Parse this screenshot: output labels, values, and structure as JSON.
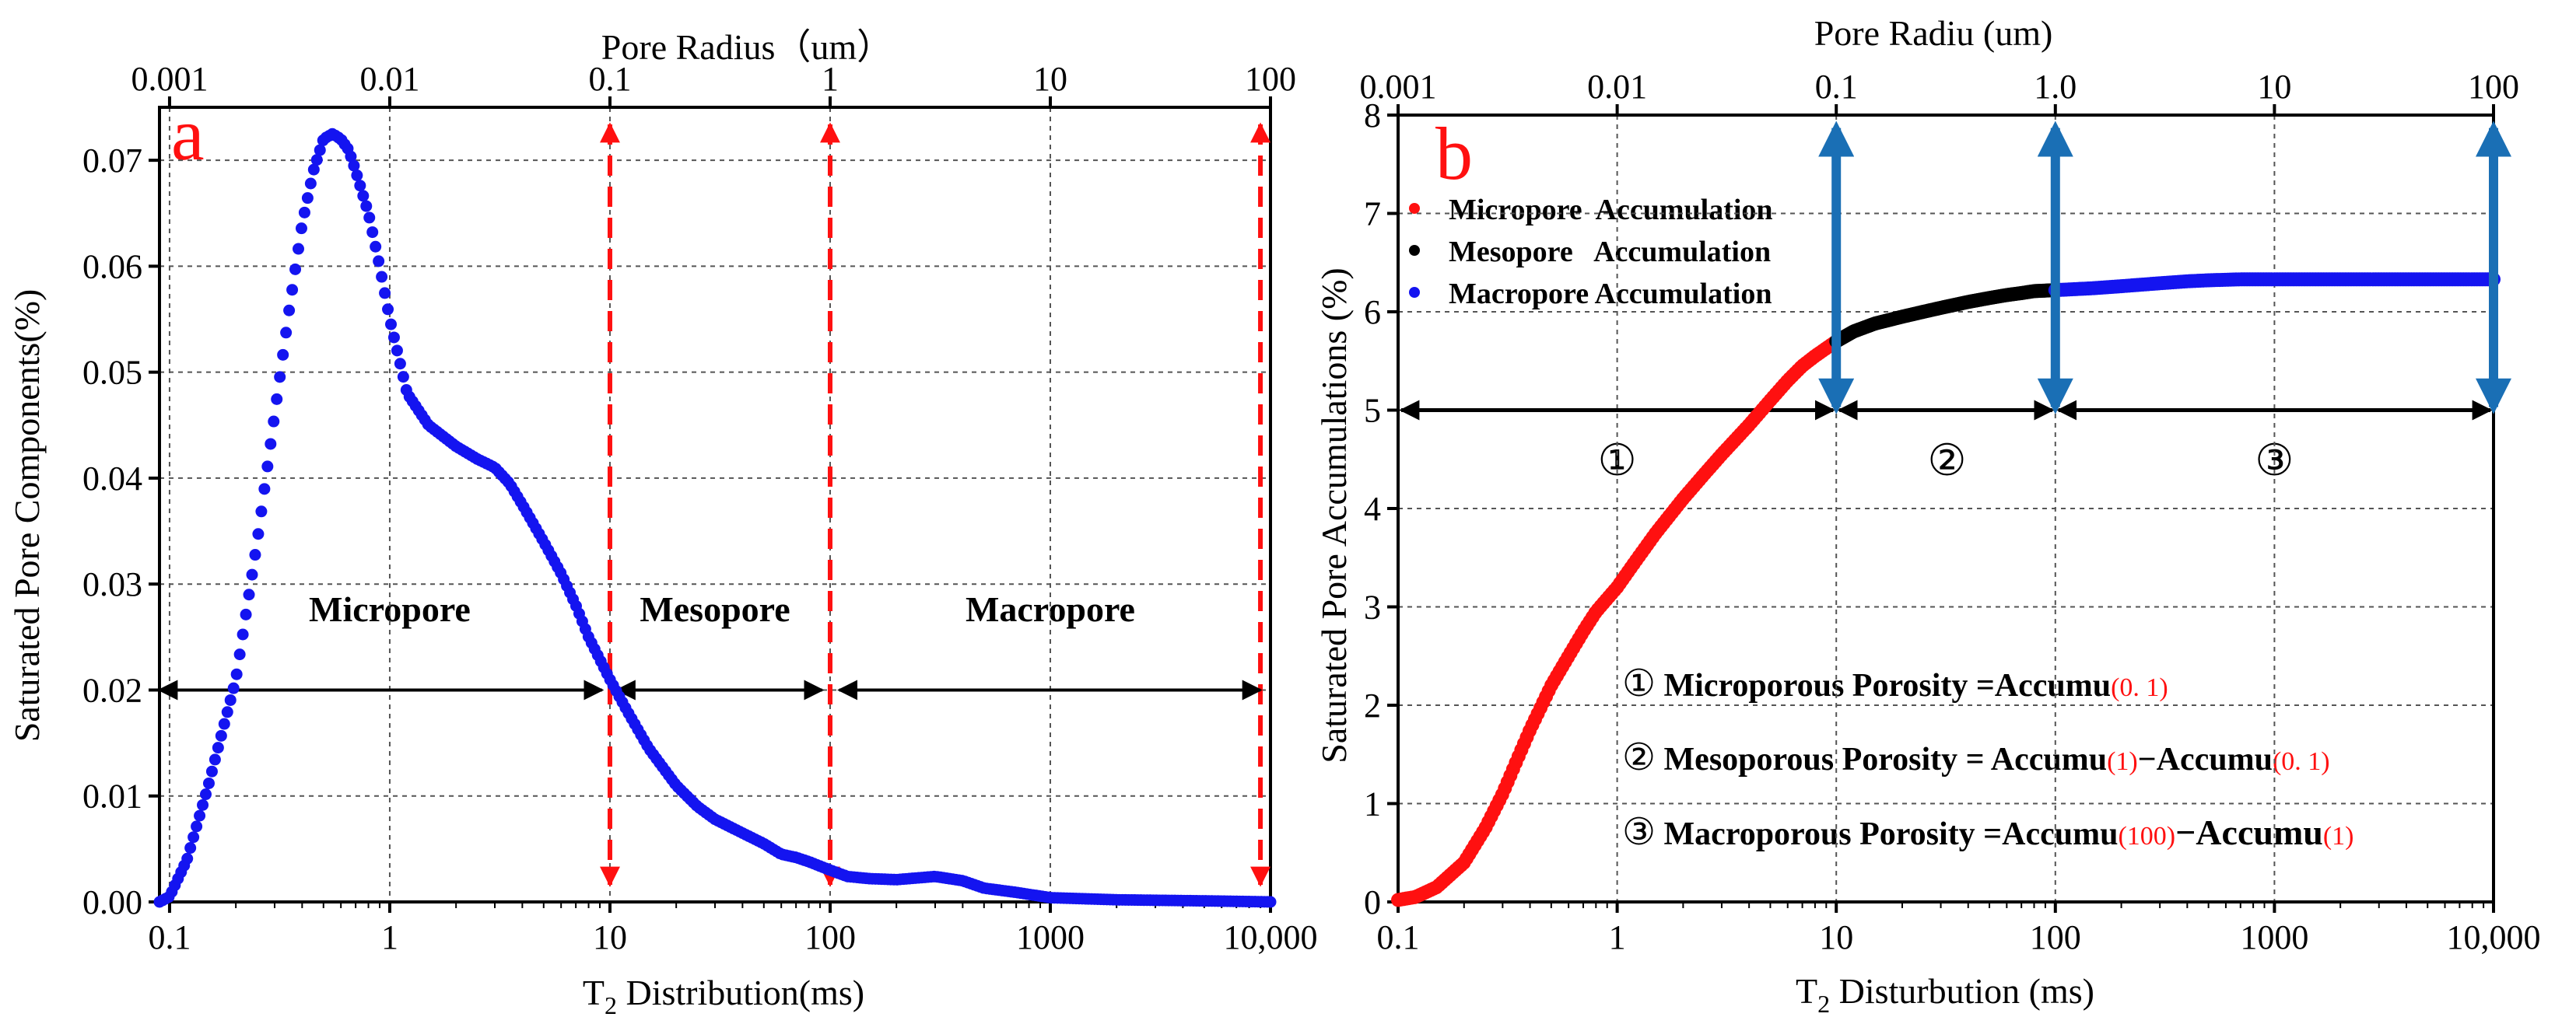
{
  "chart_data": [
    {
      "id": "a",
      "type": "scatter",
      "panel_label": "a",
      "x_scale": "log",
      "xlim": [
        0.09,
        10000
      ],
      "ylim": [
        0,
        0.075
      ],
      "xlabel_main": "T",
      "xlabel_sub": "2",
      "xlabel_rest": " Distribution(ms)",
      "ylabel": "Saturated Pore Components(%)",
      "top_axis_title": "Pore  Radius（um）",
      "x_ticks": [
        {
          "v": 0.1,
          "label": "0.1"
        },
        {
          "v": 1,
          "label": "1"
        },
        {
          "v": 10,
          "label": "10"
        },
        {
          "v": 100,
          "label": "100"
        },
        {
          "v": 1000,
          "label": "1000"
        },
        {
          "v": 10000,
          "label": "10,000"
        }
      ],
      "top_ticks": [
        {
          "v": 0.1,
          "label": "0.001"
        },
        {
          "v": 1,
          "label": "0.01"
        },
        {
          "v": 10,
          "label": "0.1"
        },
        {
          "v": 100,
          "label": "1"
        },
        {
          "v": 1000,
          "label": "10"
        },
        {
          "v": 10000,
          "label": "100"
        }
      ],
      "y_ticks": [
        {
          "v": 0,
          "label": "0.00"
        },
        {
          "v": 0.01,
          "label": "0.01"
        },
        {
          "v": 0.02,
          "label": "0.02"
        },
        {
          "v": 0.03,
          "label": "0.03"
        },
        {
          "v": 0.04,
          "label": "0.04"
        },
        {
          "v": 0.05,
          "label": "0.05"
        },
        {
          "v": 0.06,
          "label": "0.06"
        },
        {
          "v": 0.07,
          "label": "0.07"
        }
      ],
      "series": [
        {
          "name": "Saturated pore components",
          "color": "#1414f0",
          "x": [
            0.09,
            0.1,
            0.12,
            0.15,
            0.2,
            0.25,
            0.3,
            0.35,
            0.4,
            0.45,
            0.5,
            0.55,
            0.6,
            0.65,
            0.7,
            0.8,
            0.9,
            1.0,
            1.2,
            1.5,
            2,
            2.5,
            3,
            3.5,
            4,
            5,
            6,
            7,
            8,
            10,
            12,
            15,
            20,
            25,
            30,
            40,
            50,
            60,
            70,
            80,
            100,
            120,
            150,
            200,
            300,
            400,
            500,
            700,
            1000,
            2000,
            5000,
            10000
          ],
          "y": [
            0.0,
            0.0005,
            0.004,
            0.011,
            0.021,
            0.034,
            0.046,
            0.056,
            0.064,
            0.069,
            0.072,
            0.0725,
            0.072,
            0.071,
            0.069,
            0.065,
            0.06,
            0.055,
            0.048,
            0.045,
            0.043,
            0.0418,
            0.041,
            0.0395,
            0.0375,
            0.034,
            0.031,
            0.028,
            0.025,
            0.021,
            0.018,
            0.0145,
            0.011,
            0.009,
            0.0078,
            0.0065,
            0.0055,
            0.0045,
            0.0042,
            0.0038,
            0.003,
            0.0024,
            0.0022,
            0.0021,
            0.0024,
            0.002,
            0.0013,
            0.0009,
            0.0004,
            0.0002,
            0.0001,
            0.0
          ]
        }
      ],
      "dividers": [
        {
          "v": 10,
          "color": "#ff1010"
        },
        {
          "v": 100,
          "color": "#ff1010"
        },
        {
          "v": 9000,
          "color": "#ff1010"
        }
      ],
      "ranges": [
        {
          "from": 0.09,
          "to": 9.2,
          "label": "Micropore",
          "label_x": 1.0
        },
        {
          "from": 10.8,
          "to": 92,
          "label": "Mesopore",
          "label_x": 30
        },
        {
          "from": 110,
          "to": 9000,
          "label": "Macropore",
          "label_x": 1000
        }
      ],
      "range_y": 0.02,
      "range_label_y": 0.0265
    },
    {
      "id": "b",
      "type": "scatter",
      "panel_label": "b",
      "x_scale": "log",
      "xlim": [
        0.1,
        10000
      ],
      "ylim": [
        0,
        8
      ],
      "xlabel_main": "T",
      "xlabel_sub": "2",
      "xlabel_rest": " Disturbution (ms)",
      "ylabel": "Saturated Pore Accumulations (%)",
      "top_axis_title": "Pore Radiu (um)",
      "x_ticks": [
        {
          "v": 0.1,
          "label": "0.1"
        },
        {
          "v": 1,
          "label": "1"
        },
        {
          "v": 10,
          "label": "10"
        },
        {
          "v": 100,
          "label": "100"
        },
        {
          "v": 1000,
          "label": "1000"
        },
        {
          "v": 10000,
          "label": "10,000"
        }
      ],
      "top_ticks": [
        {
          "v": 0.1,
          "label": "0.001"
        },
        {
          "v": 1,
          "label": "0.01"
        },
        {
          "v": 10,
          "label": "0.1"
        },
        {
          "v": 100,
          "label": "1.0"
        },
        {
          "v": 1000,
          "label": "10"
        },
        {
          "v": 10000,
          "label": "100"
        }
      ],
      "y_ticks": [
        {
          "v": 0,
          "label": "0"
        },
        {
          "v": 1,
          "label": "1"
        },
        {
          "v": 2,
          "label": "2"
        },
        {
          "v": 3,
          "label": "3"
        },
        {
          "v": 4,
          "label": "4"
        },
        {
          "v": 5,
          "label": "5"
        },
        {
          "v": 6,
          "label": "6"
        },
        {
          "v": 7,
          "label": "7"
        },
        {
          "v": 8,
          "label": "8"
        }
      ],
      "series": [
        {
          "name": "Micropore  Accumulation",
          "color": "#ff1010",
          "x": [
            0.1,
            0.12,
            0.15,
            0.2,
            0.25,
            0.3,
            0.35,
            0.4,
            0.5,
            0.6,
            0.7,
            0.8,
            1.0,
            1.2,
            1.5,
            2,
            2.5,
            3,
            4,
            5,
            6,
            7,
            8,
            10
          ],
          "y": [
            0.02,
            0.05,
            0.15,
            0.4,
            0.75,
            1.1,
            1.45,
            1.75,
            2.2,
            2.5,
            2.75,
            2.95,
            3.2,
            3.45,
            3.75,
            4.1,
            4.35,
            4.55,
            4.85,
            5.1,
            5.3,
            5.45,
            5.55,
            5.7
          ]
        },
        {
          "name": "Mesopore   Accumulation",
          "color": "#000000",
          "x": [
            10,
            12,
            15,
            20,
            25,
            30,
            40,
            50,
            60,
            70,
            80,
            100
          ],
          "y": [
            5.7,
            5.8,
            5.88,
            5.95,
            6.0,
            6.04,
            6.1,
            6.14,
            6.17,
            6.19,
            6.21,
            6.22
          ]
        },
        {
          "name": "Macropore Accumulation",
          "color": "#1414f0",
          "x": [
            100,
            150,
            200,
            300,
            400,
            500,
            700,
            1000,
            2000,
            5000,
            10000
          ],
          "y": [
            6.22,
            6.24,
            6.26,
            6.29,
            6.31,
            6.32,
            6.33,
            6.33,
            6.33,
            6.33,
            6.33
          ]
        }
      ],
      "range_y": 5,
      "ranges": [
        {
          "from": 0.1,
          "to": 10,
          "label": "①",
          "label_x": 1,
          "label_y": 4.5
        },
        {
          "from": 10,
          "to": 100,
          "label": "②",
          "label_x": 32,
          "label_y": 4.5
        },
        {
          "from": 100,
          "to": 10000,
          "label": "③",
          "label_x": 1000,
          "label_y": 4.5
        }
      ],
      "blue_arrows": [
        10,
        100,
        10000
      ],
      "formulas": [
        {
          "num": "①",
          "text": " Microporous Porosity =Accumu",
          "parts": [
            {
              "t": "(0. 1)",
              "red": true
            }
          ]
        },
        {
          "num": "②",
          "text": " Mesoporous Porosity = Accumu",
          "parts": [
            {
              "t": "(1)",
              "red": true
            },
            {
              "t": "−Accumu",
              "red": false
            },
            {
              "t": "(0. 1)",
              "red": true
            }
          ]
        },
        {
          "num": "③",
          "text": " Macroporous Porosity =Accumu",
          "parts": [
            {
              "t": "(100)",
              "red": true
            },
            {
              "t": "−Accumu",
              "red": false
            },
            {
              "t": "(1)",
              "red": true
            }
          ]
        }
      ]
    }
  ]
}
